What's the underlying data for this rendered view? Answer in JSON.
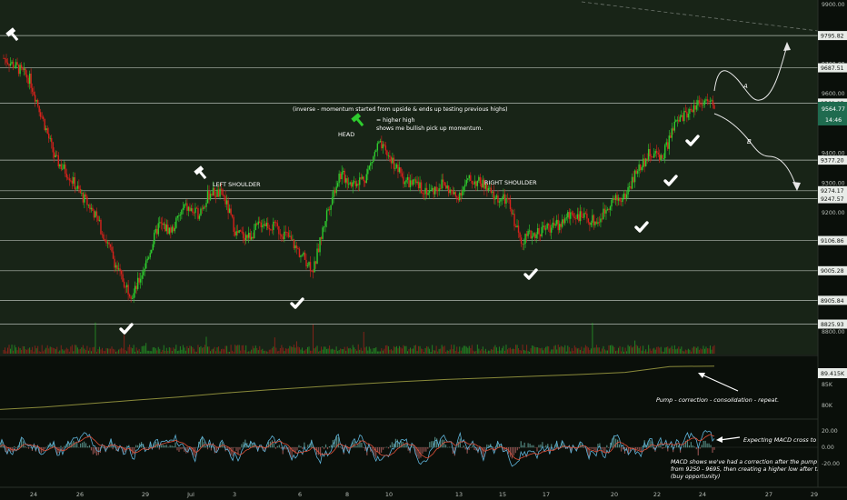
{
  "colors": {
    "bg_main": "#182417",
    "bg_panel": "#0a0f0a",
    "up_candle": "#2ecc2e",
    "down_candle": "#d9221c",
    "hline": "#cfd6cf",
    "axis_text": "#b8beb8",
    "tag_bg": "#e8ece8",
    "tag_text": "#101410",
    "last_price_bg": "#1f6b4f",
    "obv_line": "#8a8a3a",
    "macd_line": "#5fb3d9",
    "signal_line": "#e0503a"
  },
  "chart_data": [
    {
      "type": "candlestick",
      "panel": "price",
      "y_axis_labels": [
        "9900.00",
        "9800.00",
        "9700.00",
        "9600.00",
        "9500.00",
        "9400.00",
        "9300.00",
        "9200.00",
        "9100.00",
        "9000.00",
        "8900.00",
        "8800.00"
      ],
      "ylim": [
        8790,
        9905
      ],
      "x_tick_labels": [
        "24",
        "26",
        "29",
        "Jul",
        "3",
        "6",
        "8",
        "10",
        "13",
        "15",
        "17",
        "20",
        "22",
        "24",
        "27",
        "29"
      ],
      "horizontal_levels": [
        "9795.82",
        "9687.51",
        "9568.85",
        "9377.20",
        "9274.17",
        "9247.57",
        "9106.86",
        "9005.28",
        "8905.84",
        "8825.93"
      ],
      "level_values": [
        9795.82,
        9687.51,
        9568.85,
        9377.2,
        9274.17,
        9247.57,
        9106.86,
        9005.28,
        8905.84,
        8825.93
      ],
      "last_price": "9564.77",
      "countdown": "14:46",
      "path_values": [
        9720,
        9690,
        9650,
        9520,
        9380,
        9330,
        9260,
        9200,
        9100,
        8990,
        8920,
        9030,
        9160,
        9140,
        9220,
        9195,
        9270,
        9260,
        9130,
        9120,
        9170,
        9150,
        9120,
        9060,
        9010,
        9200,
        9330,
        9300,
        9320,
        9430,
        9380,
        9310,
        9290,
        9270,
        9300,
        9250,
        9310,
        9300,
        9250,
        9240,
        9110,
        9130,
        9150,
        9160,
        9200,
        9180,
        9170,
        9240,
        9250,
        9340,
        9400,
        9390,
        9500,
        9540,
        9580,
        9560
      ],
      "annotations": {
        "inverse_note": "(inverse - momentum started from upside & ends up testing previous highs)",
        "higher_high_1": "= higher high",
        "higher_high_2": "shows me bullish pick up momentum.",
        "head": "HEAD",
        "left_shoulder": "LEFT SHOULDER",
        "right_shoulder": "RIGHT SHOULDER",
        "path_a": "A",
        "path_b": "B"
      }
    },
    {
      "type": "line",
      "panel": "obv",
      "y_axis_labels": [
        "89.415K",
        "85K",
        "80K"
      ],
      "current_value": "89.415K",
      "values": [
        79000,
        79600,
        80400,
        81200,
        82000,
        82900,
        83700,
        84400,
        85100,
        85700,
        86200,
        86600,
        87000,
        87400,
        87900,
        89300,
        89415
      ],
      "annotation": "Pump - correction - consolidation - repeat."
    },
    {
      "type": "line",
      "panel": "macd",
      "y_axis_labels": [
        "20.00",
        "0.00",
        "-20.00"
      ],
      "annotation_right": "Expecting MACD cross to up",
      "annotation_note_1": "MACD shows we've had a correction after the pump",
      "annotation_note_2": "from 9250 - 9695, then creating a higher low after the c",
      "annotation_note_3": "(buy opportunity)"
    }
  ]
}
